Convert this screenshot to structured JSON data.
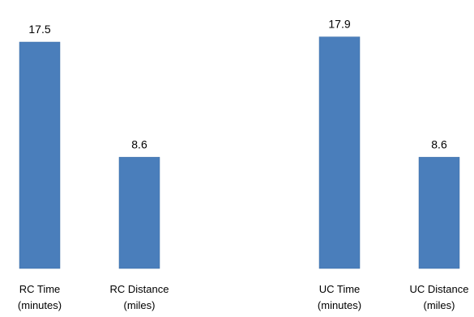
{
  "chart_data": {
    "type": "bar",
    "categories": [
      [
        "RC Time",
        "(minutes)"
      ],
      [
        "RC Distance",
        "(miles)"
      ],
      [
        "UC Time",
        "(minutes)"
      ],
      [
        "UC Distance",
        "(miles)"
      ]
    ],
    "values": [
      17.5,
      8.6,
      17.9,
      8.6
    ],
    "data_labels": [
      "17.5",
      "8.6",
      "17.9",
      "8.6"
    ],
    "ylim": [
      0,
      20
    ],
    "grid": false,
    "legend": "none",
    "bar_color": "#4a7ebb"
  }
}
